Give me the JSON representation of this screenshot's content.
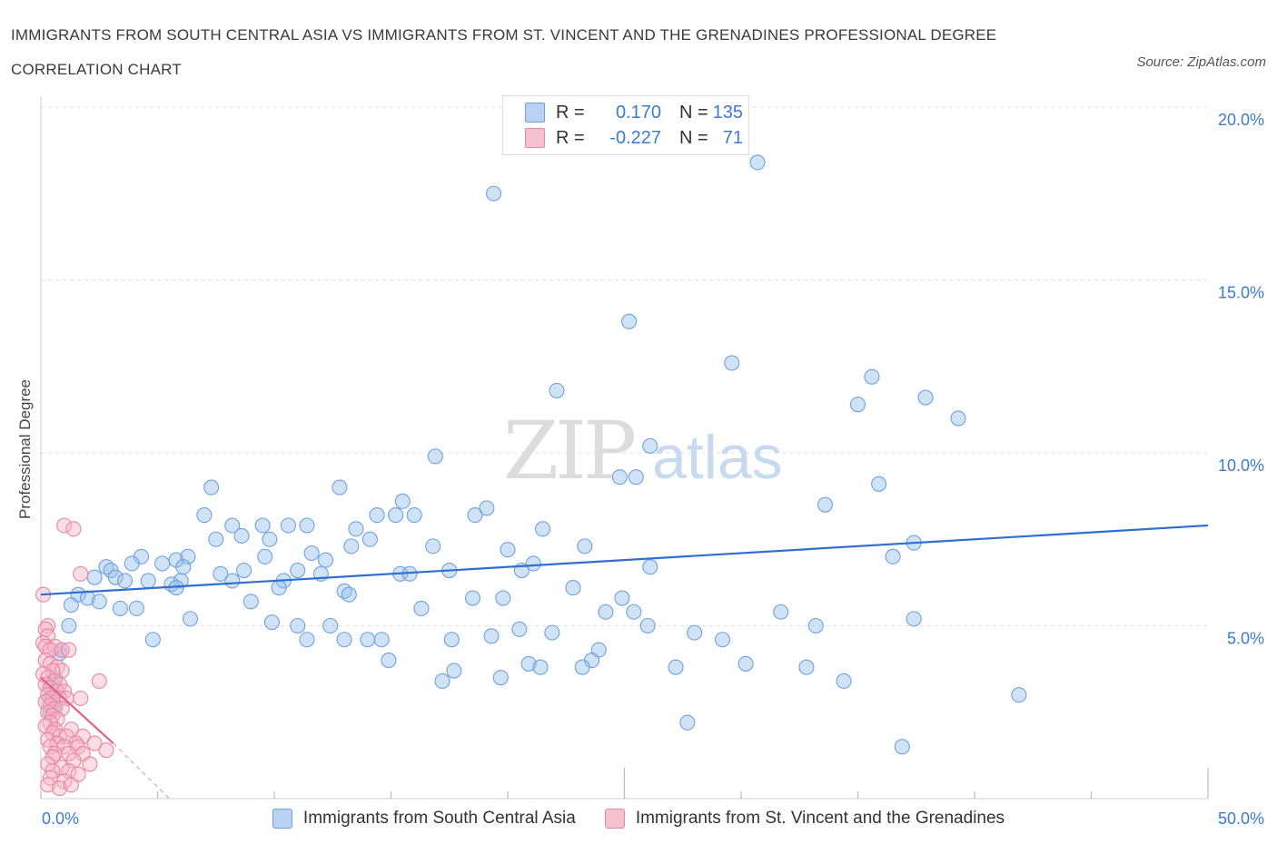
{
  "header": {
    "title": "IMMIGRANTS FROM SOUTH CENTRAL ASIA VS IMMIGRANTS FROM ST. VINCENT AND THE GRENADINES PROFESSIONAL DEGREE CORRELATION CHART",
    "source": "Source: ZipAtlas.com"
  },
  "watermark": {
    "zip": "ZIP",
    "atlas": "atlas"
  },
  "legend": {
    "rows": [
      {
        "r_label": "R =",
        "r_value": "0.170",
        "n_label": "N =",
        "n_value": "135",
        "color": "#6fa1e0",
        "fill": "#b9d1f2"
      },
      {
        "r_label": "R =",
        "r_value": "-0.227",
        "n_label": "N =",
        "n_value": "71",
        "color": "#e8879f",
        "fill": "#f6c1cf"
      }
    ]
  },
  "bottom_legend": {
    "items": [
      {
        "label": "Immigrants from South Central Asia",
        "fill": "#b9d1f2",
        "color": "#6fa1e0"
      },
      {
        "label": "Immigrants from St. Vincent and the Grenadines",
        "fill": "#f6c1cf",
        "color": "#e8879f"
      }
    ]
  },
  "chart_data": {
    "type": "scatter",
    "title": "IMMIGRANTS FROM SOUTH CENTRAL ASIA VS IMMIGRANTS FROM ST. VINCENT AND THE GRENADINES PROFESSIONAL DEGREE CORRELATION CHART",
    "xlabel": "",
    "ylabel": "Professional Degree",
    "xlim": [
      0,
      50
    ],
    "ylim": [
      0,
      20
    ],
    "x_tick_labels": [
      "0.0%",
      "50.0%"
    ],
    "y_ticks": [
      5,
      10,
      15,
      20
    ],
    "y_tick_labels": [
      "5.0%",
      "10.0%",
      "15.0%",
      "20.0%"
    ],
    "grid": true,
    "series": [
      {
        "name": "Immigrants from South Central Asia",
        "color": "#3b7bd0",
        "trend": {
          "x": [
            0,
            50
          ],
          "y": [
            5.9,
            7.9
          ]
        },
        "points": [
          [
            19.4,
            17.5
          ],
          [
            30.7,
            18.4
          ],
          [
            25.2,
            13.8
          ],
          [
            29.6,
            12.6
          ],
          [
            35.6,
            12.2
          ],
          [
            37.9,
            11.6
          ],
          [
            35.0,
            11.4
          ],
          [
            22.1,
            11.8
          ],
          [
            39.3,
            11.0
          ],
          [
            16.9,
            9.9
          ],
          [
            26.1,
            10.2
          ],
          [
            24.8,
            9.3
          ],
          [
            25.5,
            9.3
          ],
          [
            7.3,
            9.0
          ],
          [
            12.8,
            9.0
          ],
          [
            33.6,
            8.5
          ],
          [
            35.9,
            9.1
          ],
          [
            15.5,
            8.6
          ],
          [
            19.1,
            8.4
          ],
          [
            18.6,
            8.2
          ],
          [
            14.4,
            8.2
          ],
          [
            15.2,
            8.2
          ],
          [
            16.0,
            8.2
          ],
          [
            7.0,
            8.2
          ],
          [
            11.4,
            7.9
          ],
          [
            10.6,
            7.9
          ],
          [
            9.5,
            7.9
          ],
          [
            8.2,
            7.9
          ],
          [
            13.5,
            7.8
          ],
          [
            21.5,
            7.8
          ],
          [
            8.6,
            7.6
          ],
          [
            7.5,
            7.5
          ],
          [
            9.8,
            7.5
          ],
          [
            14.1,
            7.5
          ],
          [
            13.3,
            7.3
          ],
          [
            16.8,
            7.3
          ],
          [
            23.3,
            7.3
          ],
          [
            20.0,
            7.2
          ],
          [
            37.4,
            7.4
          ],
          [
            36.5,
            7.0
          ],
          [
            4.3,
            7.0
          ],
          [
            5.8,
            6.9
          ],
          [
            6.3,
            7.0
          ],
          [
            9.6,
            7.0
          ],
          [
            11.6,
            7.1
          ],
          [
            12.2,
            6.9
          ],
          [
            3.9,
            6.8
          ],
          [
            5.2,
            6.8
          ],
          [
            6.1,
            6.7
          ],
          [
            2.8,
            6.7
          ],
          [
            3.0,
            6.6
          ],
          [
            8.7,
            6.6
          ],
          [
            7.7,
            6.5
          ],
          [
            11.0,
            6.6
          ],
          [
            12.0,
            6.5
          ],
          [
            15.4,
            6.5
          ],
          [
            15.8,
            6.5
          ],
          [
            17.5,
            6.6
          ],
          [
            20.6,
            6.6
          ],
          [
            21.1,
            6.8
          ],
          [
            26.1,
            6.7
          ],
          [
            2.3,
            6.4
          ],
          [
            3.2,
            6.4
          ],
          [
            4.6,
            6.3
          ],
          [
            3.6,
            6.3
          ],
          [
            6.0,
            6.3
          ],
          [
            8.2,
            6.3
          ],
          [
            10.4,
            6.3
          ],
          [
            5.6,
            6.2
          ],
          [
            5.8,
            6.1
          ],
          [
            10.2,
            6.1
          ],
          [
            13.0,
            6.0
          ],
          [
            13.2,
            5.9
          ],
          [
            22.8,
            6.1
          ],
          [
            19.8,
            5.8
          ],
          [
            18.5,
            5.8
          ],
          [
            24.9,
            5.8
          ],
          [
            1.6,
            5.9
          ],
          [
            2.0,
            5.8
          ],
          [
            2.5,
            5.7
          ],
          [
            1.3,
            5.6
          ],
          [
            9.0,
            5.7
          ],
          [
            3.4,
            5.5
          ],
          [
            4.1,
            5.5
          ],
          [
            16.3,
            5.5
          ],
          [
            24.2,
            5.4
          ],
          [
            25.4,
            5.4
          ],
          [
            31.7,
            5.4
          ],
          [
            37.4,
            5.2
          ],
          [
            6.4,
            5.2
          ],
          [
            9.9,
            5.1
          ],
          [
            11.0,
            5.0
          ],
          [
            12.4,
            5.0
          ],
          [
            20.5,
            4.9
          ],
          [
            21.9,
            4.8
          ],
          [
            26.0,
            5.0
          ],
          [
            33.2,
            5.0
          ],
          [
            28.0,
            4.8
          ],
          [
            1.2,
            5.0
          ],
          [
            4.8,
            4.6
          ],
          [
            11.4,
            4.6
          ],
          [
            13.0,
            4.6
          ],
          [
            14.0,
            4.6
          ],
          [
            14.6,
            4.6
          ],
          [
            17.6,
            4.6
          ],
          [
            19.3,
            4.7
          ],
          [
            29.2,
            4.6
          ],
          [
            0.9,
            4.3
          ],
          [
            0.8,
            4.2
          ],
          [
            23.9,
            4.3
          ],
          [
            23.6,
            4.0
          ],
          [
            14.9,
            4.0
          ],
          [
            20.9,
            3.9
          ],
          [
            21.4,
            3.8
          ],
          [
            23.2,
            3.8
          ],
          [
            30.2,
            3.9
          ],
          [
            32.8,
            3.8
          ],
          [
            27.2,
            3.8
          ],
          [
            17.7,
            3.7
          ],
          [
            34.4,
            3.4
          ],
          [
            0.6,
            3.5
          ],
          [
            19.7,
            3.5
          ],
          [
            17.2,
            3.4
          ],
          [
            0.5,
            3.3
          ],
          [
            0.4,
            3.2
          ],
          [
            0.5,
            3.0
          ],
          [
            0.7,
            3.1
          ],
          [
            41.9,
            3.0
          ],
          [
            0.4,
            2.9
          ],
          [
            0.5,
            2.8
          ],
          [
            0.6,
            2.7
          ],
          [
            27.7,
            2.2
          ],
          [
            36.9,
            1.5
          ],
          [
            0.4,
            2.5
          ],
          [
            0.5,
            2.6
          ]
        ]
      },
      {
        "name": "Immigrants from St. Vincent and the Grenadines",
        "color": "#e0608a",
        "trend": {
          "x": [
            0,
            3.1
          ],
          "y": [
            3.5,
            1.6
          ]
        },
        "trend_extension": {
          "x": [
            3.1,
            5.5
          ],
          "y": [
            1.6,
            0.0
          ]
        },
        "points": [
          [
            1.0,
            7.9
          ],
          [
            1.4,
            7.8
          ],
          [
            1.7,
            6.5
          ],
          [
            0.1,
            5.9
          ],
          [
            0.3,
            5.0
          ],
          [
            0.2,
            4.9
          ],
          [
            0.3,
            4.7
          ],
          [
            0.1,
            4.5
          ],
          [
            0.2,
            4.4
          ],
          [
            0.6,
            4.4
          ],
          [
            0.4,
            4.3
          ],
          [
            0.9,
            4.3
          ],
          [
            1.2,
            4.3
          ],
          [
            0.2,
            4.0
          ],
          [
            0.4,
            3.9
          ],
          [
            0.7,
            3.8
          ],
          [
            0.9,
            3.7
          ],
          [
            0.5,
            3.7
          ],
          [
            0.1,
            3.6
          ],
          [
            0.3,
            3.5
          ],
          [
            0.6,
            3.4
          ],
          [
            0.8,
            3.3
          ],
          [
            2.5,
            3.4
          ],
          [
            0.2,
            3.3
          ],
          [
            0.4,
            3.2
          ],
          [
            0.7,
            3.1
          ],
          [
            1.0,
            3.1
          ],
          [
            0.3,
            3.0
          ],
          [
            0.5,
            2.9
          ],
          [
            0.8,
            2.9
          ],
          [
            1.1,
            2.9
          ],
          [
            1.7,
            2.9
          ],
          [
            0.2,
            2.8
          ],
          [
            0.4,
            2.7
          ],
          [
            0.6,
            2.6
          ],
          [
            0.9,
            2.6
          ],
          [
            0.3,
            2.5
          ],
          [
            0.5,
            2.4
          ],
          [
            0.7,
            2.3
          ],
          [
            0.4,
            2.2
          ],
          [
            0.2,
            2.1
          ],
          [
            0.6,
            2.0
          ],
          [
            1.3,
            2.0
          ],
          [
            0.5,
            1.9
          ],
          [
            0.8,
            1.8
          ],
          [
            1.1,
            1.8
          ],
          [
            1.8,
            1.8
          ],
          [
            0.3,
            1.7
          ],
          [
            0.7,
            1.6
          ],
          [
            1.5,
            1.6
          ],
          [
            2.3,
            1.6
          ],
          [
            0.4,
            1.5
          ],
          [
            1.0,
            1.5
          ],
          [
            1.6,
            1.5
          ],
          [
            2.8,
            1.4
          ],
          [
            0.6,
            1.3
          ],
          [
            1.2,
            1.3
          ],
          [
            1.8,
            1.3
          ],
          [
            0.5,
            1.2
          ],
          [
            1.4,
            1.1
          ],
          [
            2.1,
            1.0
          ],
          [
            0.3,
            1.0
          ],
          [
            0.9,
            0.9
          ],
          [
            1.2,
            0.8
          ],
          [
            0.5,
            0.8
          ],
          [
            1.6,
            0.7
          ],
          [
            0.4,
            0.6
          ],
          [
            1.0,
            0.5
          ],
          [
            0.3,
            0.4
          ],
          [
            0.8,
            0.3
          ],
          [
            1.3,
            0.4
          ]
        ]
      }
    ]
  }
}
